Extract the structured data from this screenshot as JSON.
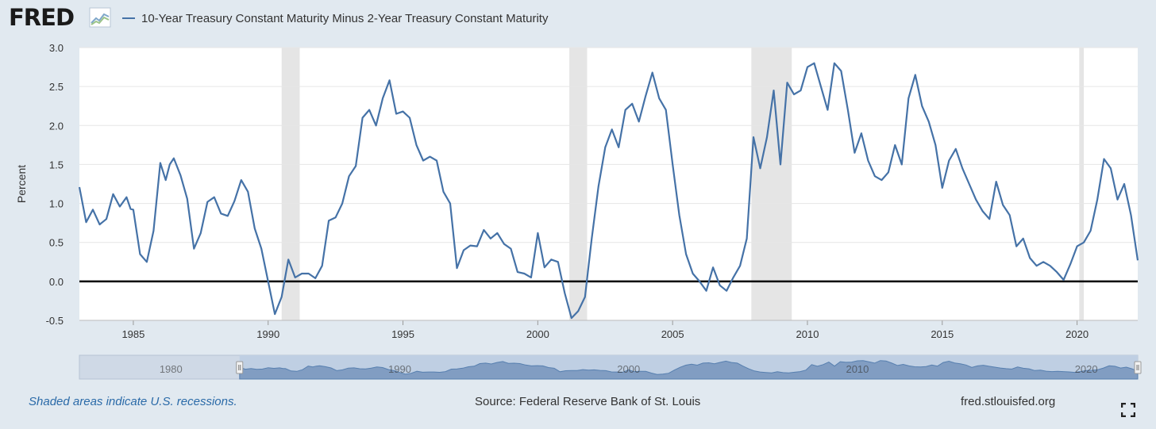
{
  "header": {
    "logo_text": "FRED",
    "logo_icon": "line-graph-icon",
    "legend_label": "10-Year Treasury Constant Maturity Minus 2-Year Treasury Constant Maturity"
  },
  "footer": {
    "note": "Shaded areas indicate U.S. recessions.",
    "source": "Source: Federal Reserve Bank of St. Louis",
    "site": "fred.stlouisfed.org",
    "fullscreen_icon": "fullscreen-icon"
  },
  "colors": {
    "series": "#4572a7",
    "recession": "#e5e5e5",
    "background": "#e1e9f0",
    "zero_line": "#000000",
    "navigator_fill": "#bfcfe3"
  },
  "chart_data": {
    "type": "line",
    "title": "",
    "xlabel": "",
    "ylabel": "Percent",
    "xlim": [
      1983.0,
      2022.25
    ],
    "ylim": [
      -0.5,
      3.0
    ],
    "y_ticks": [
      "3.0",
      "2.5",
      "2.0",
      "1.5",
      "1.0",
      "0.5",
      "0.0",
      "-0.5"
    ],
    "x_ticks": [
      "1985",
      "1990",
      "1995",
      "2000",
      "2005",
      "2010",
      "2015",
      "2020"
    ],
    "navigator_ticks": [
      "1980",
      "1990",
      "2000",
      "2010",
      "2020"
    ],
    "grid": true,
    "legend": "top-left",
    "zero_line": true,
    "recessions": [
      [
        1990.5,
        1991.17
      ],
      [
        2001.17,
        2001.83
      ],
      [
        2007.92,
        2009.42
      ],
      [
        2020.08,
        2020.25
      ]
    ],
    "series": [
      {
        "name": "10-Year Treasury Constant Maturity Minus 2-Year Treasury Constant Maturity",
        "x": [
          1983.0,
          1983.25,
          1983.5,
          1983.75,
          1984.0,
          1984.25,
          1984.5,
          1984.75,
          1984.9,
          1985.0,
          1985.25,
          1985.5,
          1985.75,
          1986.0,
          1986.2,
          1986.35,
          1986.5,
          1986.75,
          1987.0,
          1987.25,
          1987.5,
          1987.75,
          1988.0,
          1988.25,
          1988.5,
          1988.75,
          1989.0,
          1989.25,
          1989.5,
          1989.75,
          1990.0,
          1990.25,
          1990.5,
          1990.75,
          1991.0,
          1991.25,
          1991.5,
          1991.75,
          1992.0,
          1992.25,
          1992.5,
          1992.75,
          1993.0,
          1993.25,
          1993.5,
          1993.75,
          1994.0,
          1994.25,
          1994.5,
          1994.75,
          1995.0,
          1995.25,
          1995.5,
          1995.75,
          1996.0,
          1996.25,
          1996.5,
          1996.75,
          1997.0,
          1997.25,
          1997.5,
          1997.75,
          1998.0,
          1998.25,
          1998.5,
          1998.75,
          1999.0,
          1999.25,
          1999.5,
          1999.75,
          2000.0,
          2000.25,
          2000.5,
          2000.75,
          2001.0,
          2001.25,
          2001.5,
          2001.75,
          2002.0,
          2002.25,
          2002.5,
          2002.75,
          2003.0,
          2003.25,
          2003.5,
          2003.75,
          2004.0,
          2004.25,
          2004.5,
          2004.75,
          2005.0,
          2005.25,
          2005.5,
          2005.75,
          2006.0,
          2006.25,
          2006.5,
          2006.75,
          2007.0,
          2007.25,
          2007.5,
          2007.75,
          2008.0,
          2008.25,
          2008.5,
          2008.75,
          2009.0,
          2009.25,
          2009.5,
          2009.75,
          2010.0,
          2010.25,
          2010.5,
          2010.75,
          2011.0,
          2011.25,
          2011.5,
          2011.75,
          2012.0,
          2012.25,
          2012.5,
          2012.75,
          2013.0,
          2013.25,
          2013.5,
          2013.75,
          2014.0,
          2014.25,
          2014.5,
          2014.75,
          2015.0,
          2015.25,
          2015.5,
          2015.75,
          2016.0,
          2016.25,
          2016.5,
          2016.75,
          2017.0,
          2017.25,
          2017.5,
          2017.75,
          2018.0,
          2018.25,
          2018.5,
          2018.75,
          2019.0,
          2019.25,
          2019.5,
          2019.75,
          2020.0,
          2020.25,
          2020.5,
          2020.75,
          2021.0,
          2021.25,
          2021.5,
          2021.75,
          2022.0,
          2022.25
        ],
        "values": [
          1.21,
          0.76,
          0.92,
          0.73,
          0.8,
          1.12,
          0.96,
          1.08,
          0.93,
          0.92,
          0.35,
          0.25,
          0.65,
          1.52,
          1.3,
          1.5,
          1.58,
          1.36,
          1.06,
          0.42,
          0.62,
          1.02,
          1.08,
          0.87,
          0.84,
          1.03,
          1.3,
          1.15,
          0.68,
          0.42,
          0.0,
          -0.42,
          -0.2,
          0.28,
          0.05,
          0.1,
          0.1,
          0.04,
          0.2,
          0.78,
          0.82,
          1.0,
          1.35,
          1.48,
          2.1,
          2.2,
          2.0,
          2.35,
          2.58,
          2.15,
          2.18,
          2.1,
          1.75,
          1.55,
          1.6,
          1.55,
          1.15,
          1.0,
          0.17,
          0.4,
          0.46,
          0.45,
          0.66,
          0.55,
          0.62,
          0.48,
          0.42,
          0.12,
          0.1,
          0.05,
          0.62,
          0.18,
          0.28,
          0.25,
          -0.15,
          -0.47,
          -0.38,
          -0.2,
          0.55,
          1.22,
          1.72,
          1.95,
          1.72,
          2.2,
          2.28,
          2.05,
          2.38,
          2.68,
          2.35,
          2.2,
          1.5,
          0.85,
          0.35,
          0.1,
          0.0,
          -0.12,
          0.18,
          -0.05,
          -0.12,
          0.05,
          0.2,
          0.55,
          1.85,
          1.45,
          1.85,
          2.45,
          1.5,
          2.55,
          2.4,
          2.45,
          2.75,
          2.8,
          2.5,
          2.2,
          2.8,
          2.7,
          2.2,
          1.65,
          1.9,
          1.55,
          1.35,
          1.3,
          1.4,
          1.75,
          1.5,
          2.35,
          2.65,
          2.25,
          2.05,
          1.75,
          1.2,
          1.55,
          1.7,
          1.45,
          1.25,
          1.05,
          0.9,
          0.8,
          1.28,
          0.98,
          0.85,
          0.45,
          0.55,
          0.3,
          0.2,
          0.25,
          0.2,
          0.12,
          0.02,
          0.22,
          0.45,
          0.5,
          0.65,
          1.05,
          1.57,
          1.45,
          1.05,
          1.25,
          0.85,
          0.27
        ]
      }
    ]
  }
}
